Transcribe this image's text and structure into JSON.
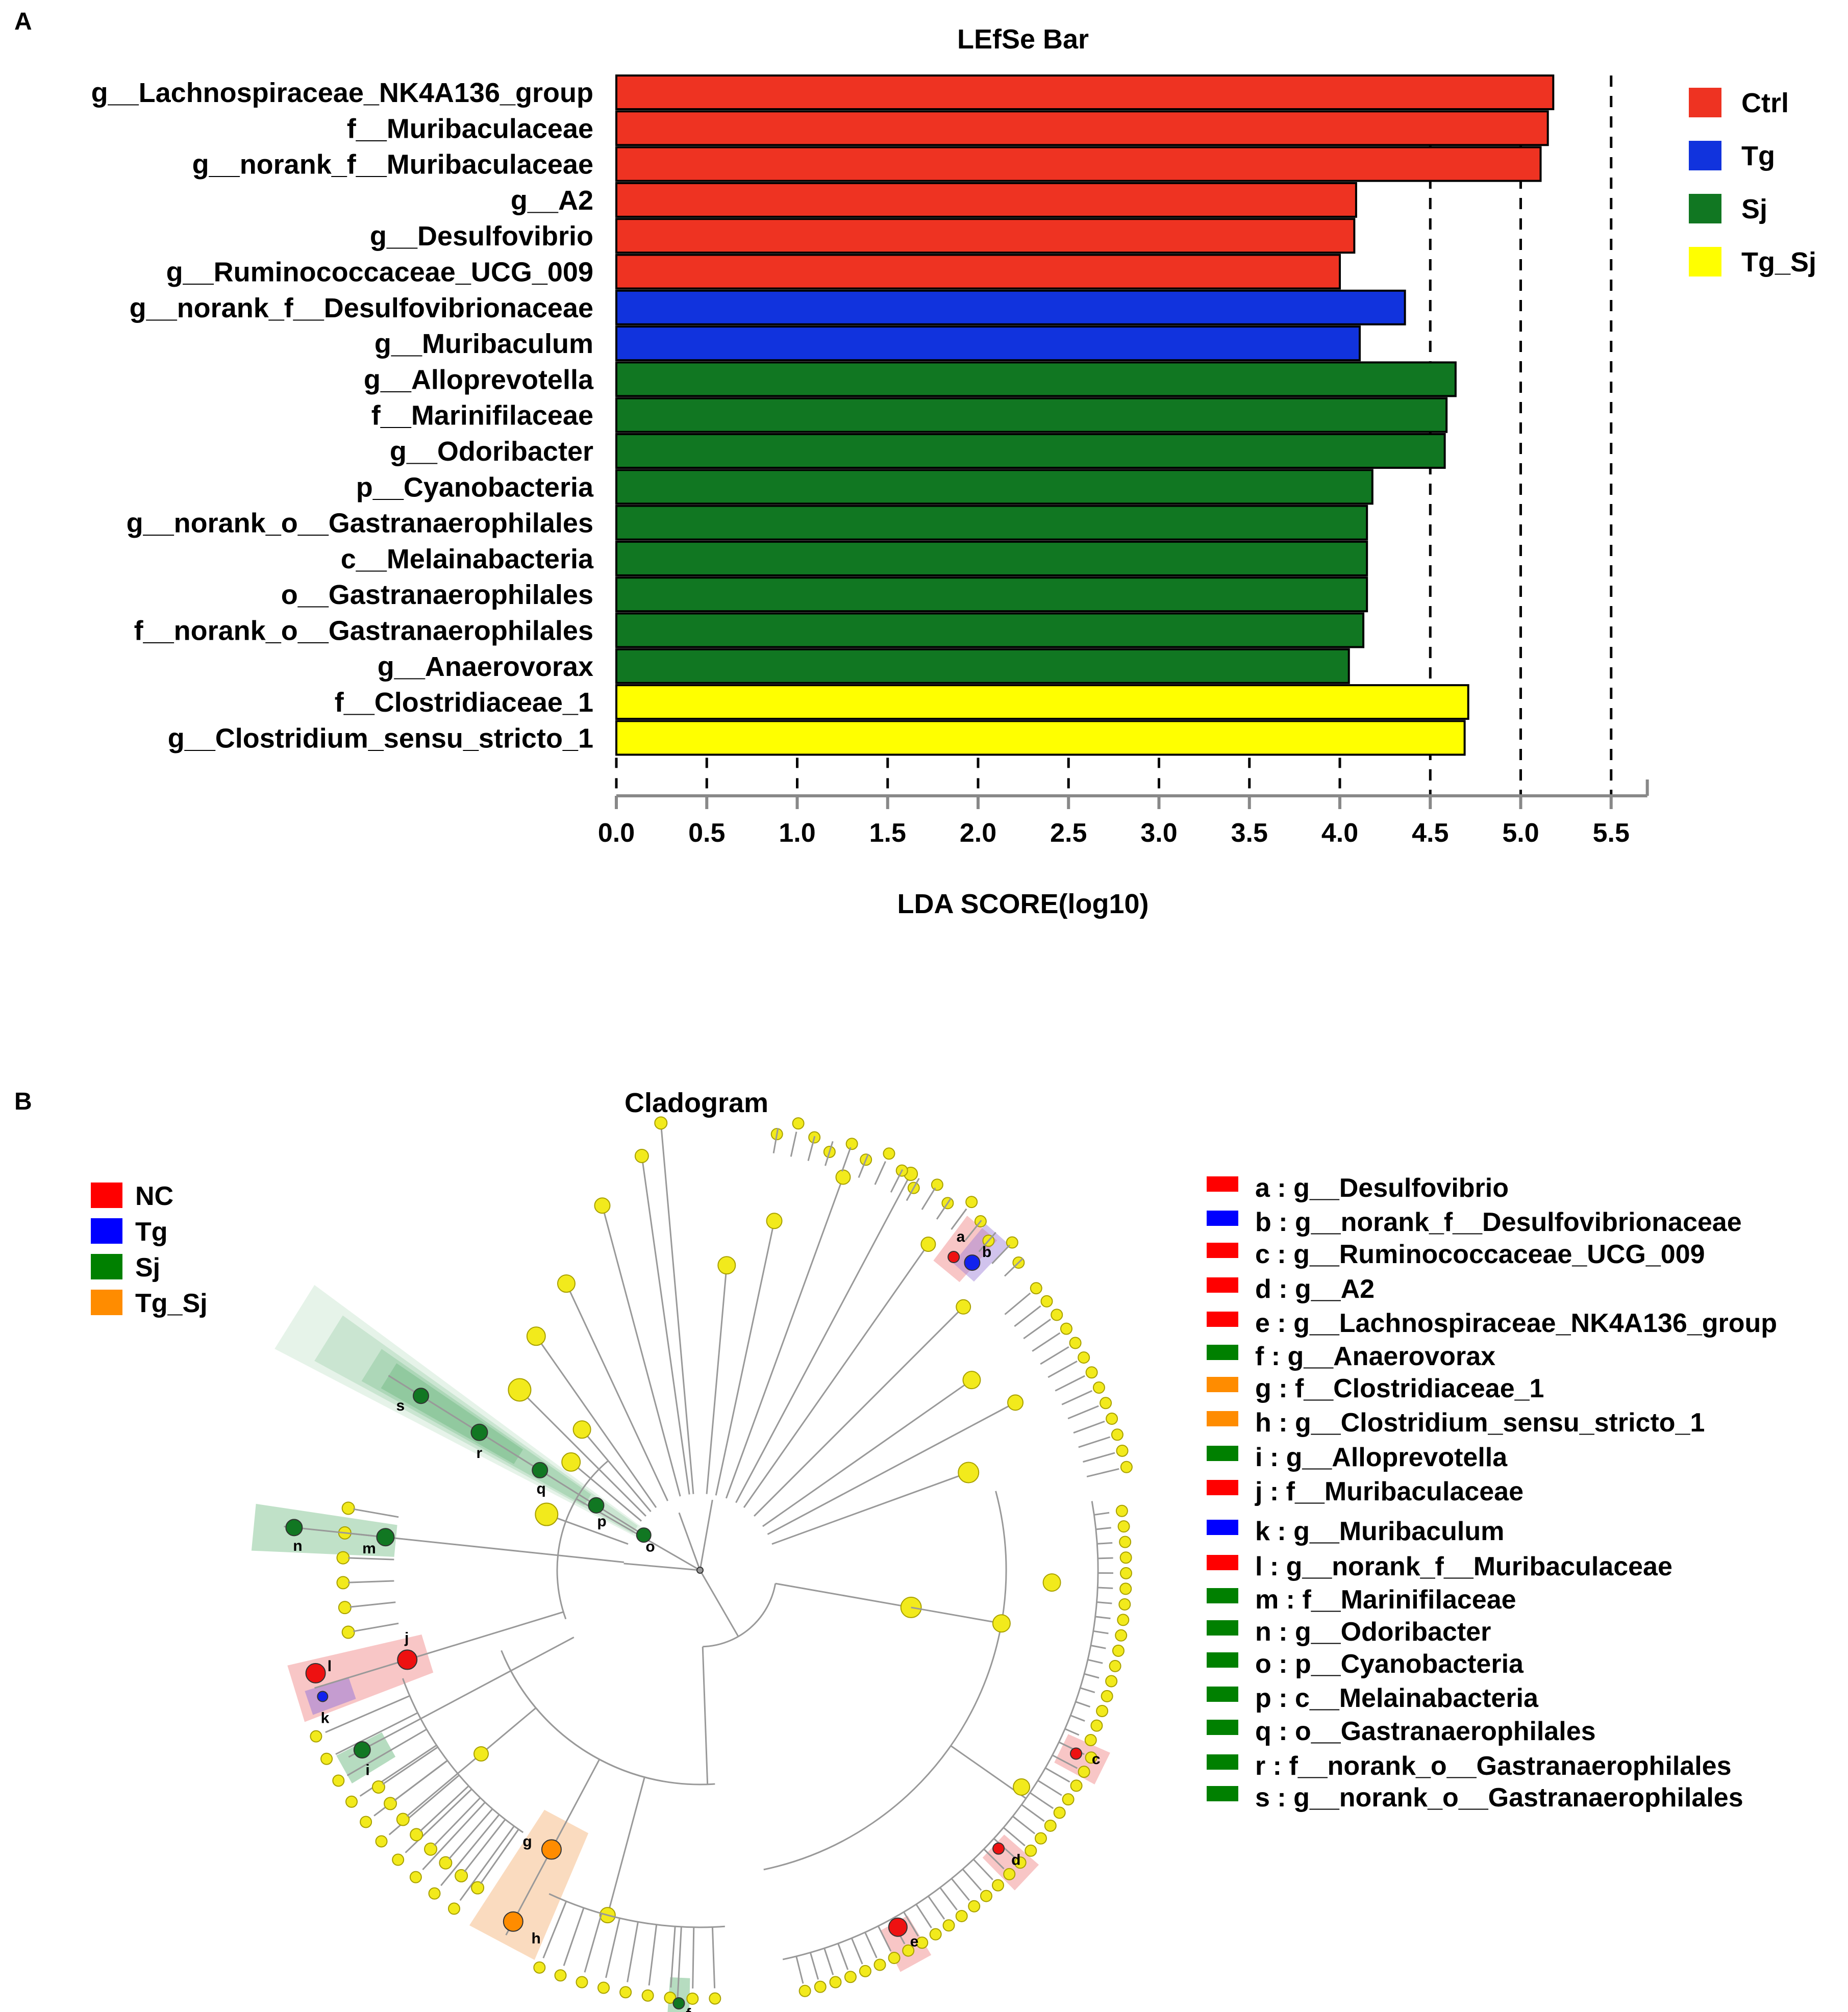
{
  "panel_a": {
    "letter": "A",
    "chart_data": {
      "type": "bar",
      "orientation": "horizontal",
      "title": "LEfSe Bar",
      "xlabel": "LDA SCORE(log10)",
      "ylabel": "",
      "xlim": [
        0,
        5.7
      ],
      "xticks": [
        "0.0",
        "0.5",
        "1.0",
        "1.5",
        "2.0",
        "2.5",
        "3.0",
        "3.5",
        "4.0",
        "4.5",
        "5.0",
        "5.5"
      ],
      "reference_lines": [
        4.5,
        5.0,
        5.5
      ],
      "grid": false,
      "legend_position": "top-right",
      "colors": {
        "Ctrl": "#ee3322",
        "Tg": "#1133dd",
        "Sj": "#117722",
        "Tg_Sj": "#ffff00"
      },
      "legend": [
        {
          "label": "Ctrl",
          "color": "#ee3322"
        },
        {
          "label": "Tg",
          "color": "#1133dd"
        },
        {
          "label": "Sj",
          "color": "#117722"
        },
        {
          "label": "Tg_Sj",
          "color": "#ffff00"
        }
      ],
      "bars": [
        {
          "label": "g__Lachnospiraceae_NK4A136_group",
          "value": 5.18,
          "group": "Ctrl"
        },
        {
          "label": "f__Muribaculaceae",
          "value": 5.15,
          "group": "Ctrl"
        },
        {
          "label": "g__norank_f__Muribaculaceae",
          "value": 5.11,
          "group": "Ctrl"
        },
        {
          "label": "g__A2",
          "value": 4.09,
          "group": "Ctrl"
        },
        {
          "label": "g__Desulfovibrio",
          "value": 4.08,
          "group": "Ctrl"
        },
        {
          "label": "g__Ruminococcaceae_UCG_009",
          "value": 4.0,
          "group": "Ctrl"
        },
        {
          "label": "g__norank_f__Desulfovibrionaceae",
          "value": 4.36,
          "group": "Tg"
        },
        {
          "label": "g__Muribaculum",
          "value": 4.11,
          "group": "Tg"
        },
        {
          "label": "g__Alloprevotella",
          "value": 4.64,
          "group": "Sj"
        },
        {
          "label": "f__Marinifilaceae",
          "value": 4.59,
          "group": "Sj"
        },
        {
          "label": "g__Odoribacter",
          "value": 4.58,
          "group": "Sj"
        },
        {
          "label": "p__Cyanobacteria",
          "value": 4.18,
          "group": "Sj"
        },
        {
          "label": "g__norank_o__Gastranaerophilales",
          "value": 4.15,
          "group": "Sj"
        },
        {
          "label": "c__Melainabacteria",
          "value": 4.15,
          "group": "Sj"
        },
        {
          "label": "o__Gastranaerophilales",
          "value": 4.15,
          "group": "Sj"
        },
        {
          "label": "f__norank_o__Gastranaerophilales",
          "value": 4.13,
          "group": "Sj"
        },
        {
          "label": "g__Anaerovorax",
          "value": 4.05,
          "group": "Sj"
        },
        {
          "label": "f__Clostridiaceae_1",
          "value": 4.71,
          "group": "Tg_Sj"
        },
        {
          "label": "g__Clostridium_sensu_stricto_1",
          "value": 4.69,
          "group": "Tg_Sj"
        }
      ]
    }
  },
  "panel_b": {
    "letter": "B",
    "title": "Cladogram",
    "group_legend": [
      {
        "label": "NC",
        "color": "#ff0000"
      },
      {
        "label": "Tg",
        "color": "#0000ff"
      },
      {
        "label": "Sj",
        "color": "#008000"
      },
      {
        "label": "Tg_Sj",
        "color": "#ff8c00"
      }
    ],
    "taxa_legend": [
      {
        "letter": "a",
        "text": "a : g__Desulfovibrio",
        "color": "#ff0000"
      },
      {
        "letter": "b",
        "text": "b : g__norank_f__Desulfovibrionaceae",
        "color": "#0000ff"
      },
      {
        "letter": "c",
        "text": "c : g__Ruminococcaceae_UCG_009",
        "color": "#ff0000"
      },
      {
        "letter": "d",
        "text": "d : g__A2",
        "color": "#ff0000"
      },
      {
        "letter": "e",
        "text": "e : g__Lachnospiraceae_NK4A136_group",
        "color": "#ff0000"
      },
      {
        "letter": "f",
        "text": "f : g__Anaerovorax",
        "color": "#008000"
      },
      {
        "letter": "g",
        "text": "g : f__Clostridiaceae_1",
        "color": "#ff8c00"
      },
      {
        "letter": "h",
        "text": "h : g__Clostridium_sensu_stricto_1",
        "color": "#ff8c00"
      },
      {
        "letter": "i",
        "text": "i : g__Alloprevotella",
        "color": "#008000"
      },
      {
        "letter": "j",
        "text": "j : f__Muribaculaceae",
        "color": "#ff0000"
      },
      {
        "letter": "k",
        "text": "k : g__Muribaculum",
        "color": "#0000ff"
      },
      {
        "letter": "l",
        "text": "l : g__norank_f__Muribaculaceae",
        "color": "#ff0000"
      },
      {
        "letter": "m",
        "text": "m : f__Marinifilaceae",
        "color": "#008000"
      },
      {
        "letter": "n",
        "text": "n : g__Odoribacter",
        "color": "#008000"
      },
      {
        "letter": "o",
        "text": "o : p__Cyanobacteria",
        "color": "#008000"
      },
      {
        "letter": "p",
        "text": "p : c__Melainabacteria",
        "color": "#008000"
      },
      {
        "letter": "q",
        "text": "q : o__Gastranaerophilales",
        "color": "#008000"
      },
      {
        "letter": "r",
        "text": "r : f__norank_o__Gastranaerophilales",
        "color": "#008000"
      },
      {
        "letter": "s",
        "text": "s : g__norank_o__Gastranaerophilales",
        "color": "#008000"
      }
    ],
    "colors": {
      "node": "#f2ea1c",
      "node_stroke": "#a8a000",
      "edge": "#999999"
    }
  }
}
